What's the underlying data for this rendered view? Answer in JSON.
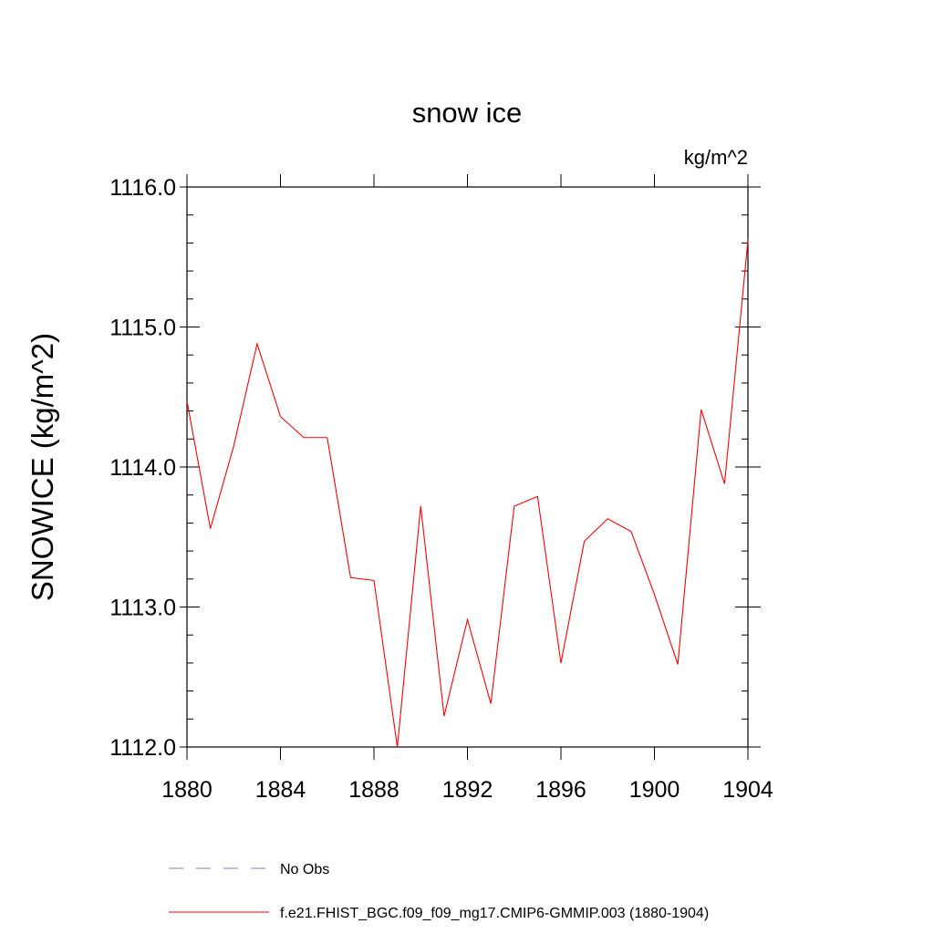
{
  "chart_data": {
    "type": "line",
    "title": "snow ice",
    "units": "kg/m^2",
    "ylabel": "SNOWICE  (kg/m^2)",
    "xlim": [
      1880,
      1904
    ],
    "ylim": [
      1112.0,
      1116.0
    ],
    "x_ticks": [
      "1880",
      "1884",
      "1888",
      "1892",
      "1896",
      "1900",
      "1904"
    ],
    "y_ticks": [
      "1112.0",
      "1113.0",
      "1114.0",
      "1115.0",
      "1116.0"
    ],
    "legend_placement": "bottom",
    "series": [
      {
        "name": "f.e21.FHIST_BGC.f09_f09_mg17.CMIP6-GMMIP.003 (1880-1904)",
        "color": "#ff0000",
        "style": "solid",
        "x": [
          1880,
          1881,
          1882,
          1883,
          1884,
          1885,
          1886,
          1887,
          1888,
          1889,
          1890,
          1891,
          1892,
          1893,
          1894,
          1895,
          1896,
          1897,
          1898,
          1899,
          1900,
          1901,
          1902,
          1903,
          1904
        ],
        "values": [
          1114.47,
          1113.56,
          1114.15,
          1114.88,
          1114.36,
          1114.21,
          1114.21,
          1113.21,
          1113.19,
          1112.0,
          1113.72,
          1112.22,
          1112.91,
          1112.31,
          1113.72,
          1113.79,
          1112.6,
          1113.47,
          1113.63,
          1113.54,
          1113.09,
          1112.59,
          1114.41,
          1113.88,
          1115.62
        ]
      }
    ],
    "legend": [
      {
        "label": "No Obs",
        "color": "#7f7fcc",
        "style": "dashed"
      },
      {
        "label": "f.e21.FHIST_BGC.f09_f09_mg17.CMIP6-GMMIP.003 (1880-1904)",
        "color": "#ff0000",
        "style": "solid"
      }
    ]
  }
}
